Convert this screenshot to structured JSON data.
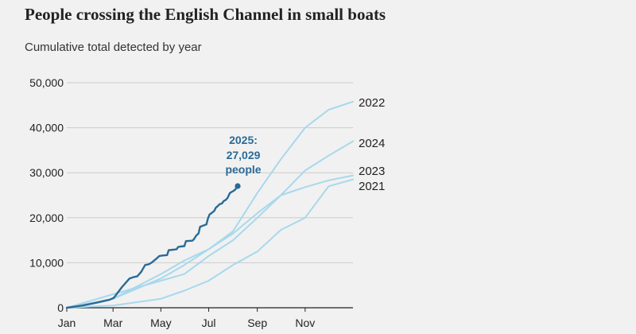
{
  "title": "People crossing the English Channel in small boats",
  "subtitle": "Cumulative total detected by year",
  "colors": {
    "past_years": "#a8d8ec",
    "current_year": "#2a6a97",
    "grid": "#cccccc",
    "axis": "#222222"
  },
  "chart_data": {
    "type": "line",
    "title": "People crossing the English Channel in small boats",
    "subtitle": "Cumulative total detected by year",
    "xlabel": "",
    "ylabel": "",
    "xlim": [
      0,
      365
    ],
    "ylim": [
      0,
      50000
    ],
    "x_unit": "day of year",
    "x_ticks": [
      {
        "label": "Jan",
        "value": 0
      },
      {
        "label": "Mar",
        "value": 59
      },
      {
        "label": "May",
        "value": 120
      },
      {
        "label": "Jul",
        "value": 181
      },
      {
        "label": "Sep",
        "value": 243
      },
      {
        "label": "Nov",
        "value": 304
      }
    ],
    "y_ticks": [
      {
        "label": "0",
        "value": 0
      },
      {
        "label": "10,000",
        "value": 10000
      },
      {
        "label": "20,000",
        "value": 20000
      },
      {
        "label": "30,000",
        "value": 30000
      },
      {
        "label": "40,000",
        "value": 40000
      },
      {
        "label": "50,000",
        "value": 50000
      }
    ],
    "grid": true,
    "series": [
      {
        "name": "2021",
        "highlight": false,
        "x": [
          0,
          59,
          120,
          150,
          181,
          212,
          243,
          273,
          304,
          334,
          365
        ],
        "y": [
          0,
          500,
          2000,
          3800,
          6000,
          9500,
          12500,
          17300,
          20000,
          27000,
          28500
        ]
      },
      {
        "name": "2022",
        "highlight": false,
        "x": [
          0,
          59,
          120,
          150,
          181,
          212,
          243,
          273,
          304,
          334,
          365
        ],
        "y": [
          0,
          2000,
          7500,
          10500,
          13000,
          17000,
          25500,
          33000,
          40000,
          44000,
          45800
        ]
      },
      {
        "name": "2023",
        "highlight": false,
        "x": [
          0,
          59,
          120,
          150,
          181,
          212,
          243,
          273,
          304,
          334,
          365
        ],
        "y": [
          0,
          3000,
          6000,
          7500,
          11500,
          15000,
          20000,
          25000,
          26800,
          28300,
          29400
        ]
      },
      {
        "name": "2024",
        "highlight": false,
        "x": [
          0,
          59,
          120,
          150,
          181,
          212,
          243,
          273,
          304,
          334,
          365
        ],
        "y": [
          0,
          2000,
          6500,
          9500,
          13000,
          16500,
          21000,
          25000,
          30500,
          33800,
          37000
        ]
      },
      {
        "name": "2025",
        "highlight": true,
        "x": [
          0,
          20,
          40,
          55,
          60,
          70,
          80,
          85,
          90,
          95,
          100,
          103,
          105,
          108,
          115,
          118,
          122,
          128,
          130,
          136,
          140,
          142,
          145,
          150,
          152,
          160,
          162,
          165,
          168,
          170,
          178,
          180,
          182,
          185,
          188,
          190,
          192,
          195,
          198,
          200,
          203,
          205,
          208,
          210,
          213,
          215,
          218
        ],
        "y": [
          0,
          500,
          1200,
          1800,
          2200,
          4500,
          6500,
          6800,
          7000,
          8000,
          9500,
          9600,
          9700,
          10000,
          11000,
          11500,
          11600,
          11700,
          12800,
          12900,
          13000,
          13500,
          13600,
          13700,
          14800,
          14900,
          15200,
          16000,
          16500,
          18000,
          18500,
          19800,
          20700,
          21100,
          21500,
          22200,
          22500,
          23000,
          23200,
          23700,
          24000,
          24400,
          25500,
          25700,
          26000,
          26300,
          27029
        ]
      }
    ],
    "series_labels": [
      {
        "name": "2022",
        "text": "2022"
      },
      {
        "name": "2024",
        "text": "2024"
      },
      {
        "name": "2023",
        "text": "2023"
      },
      {
        "name": "2021",
        "text": "2021"
      }
    ],
    "annotation": {
      "series": "2025",
      "lines": [
        "2025:",
        "27,029",
        "people"
      ],
      "value": 27029
    }
  }
}
